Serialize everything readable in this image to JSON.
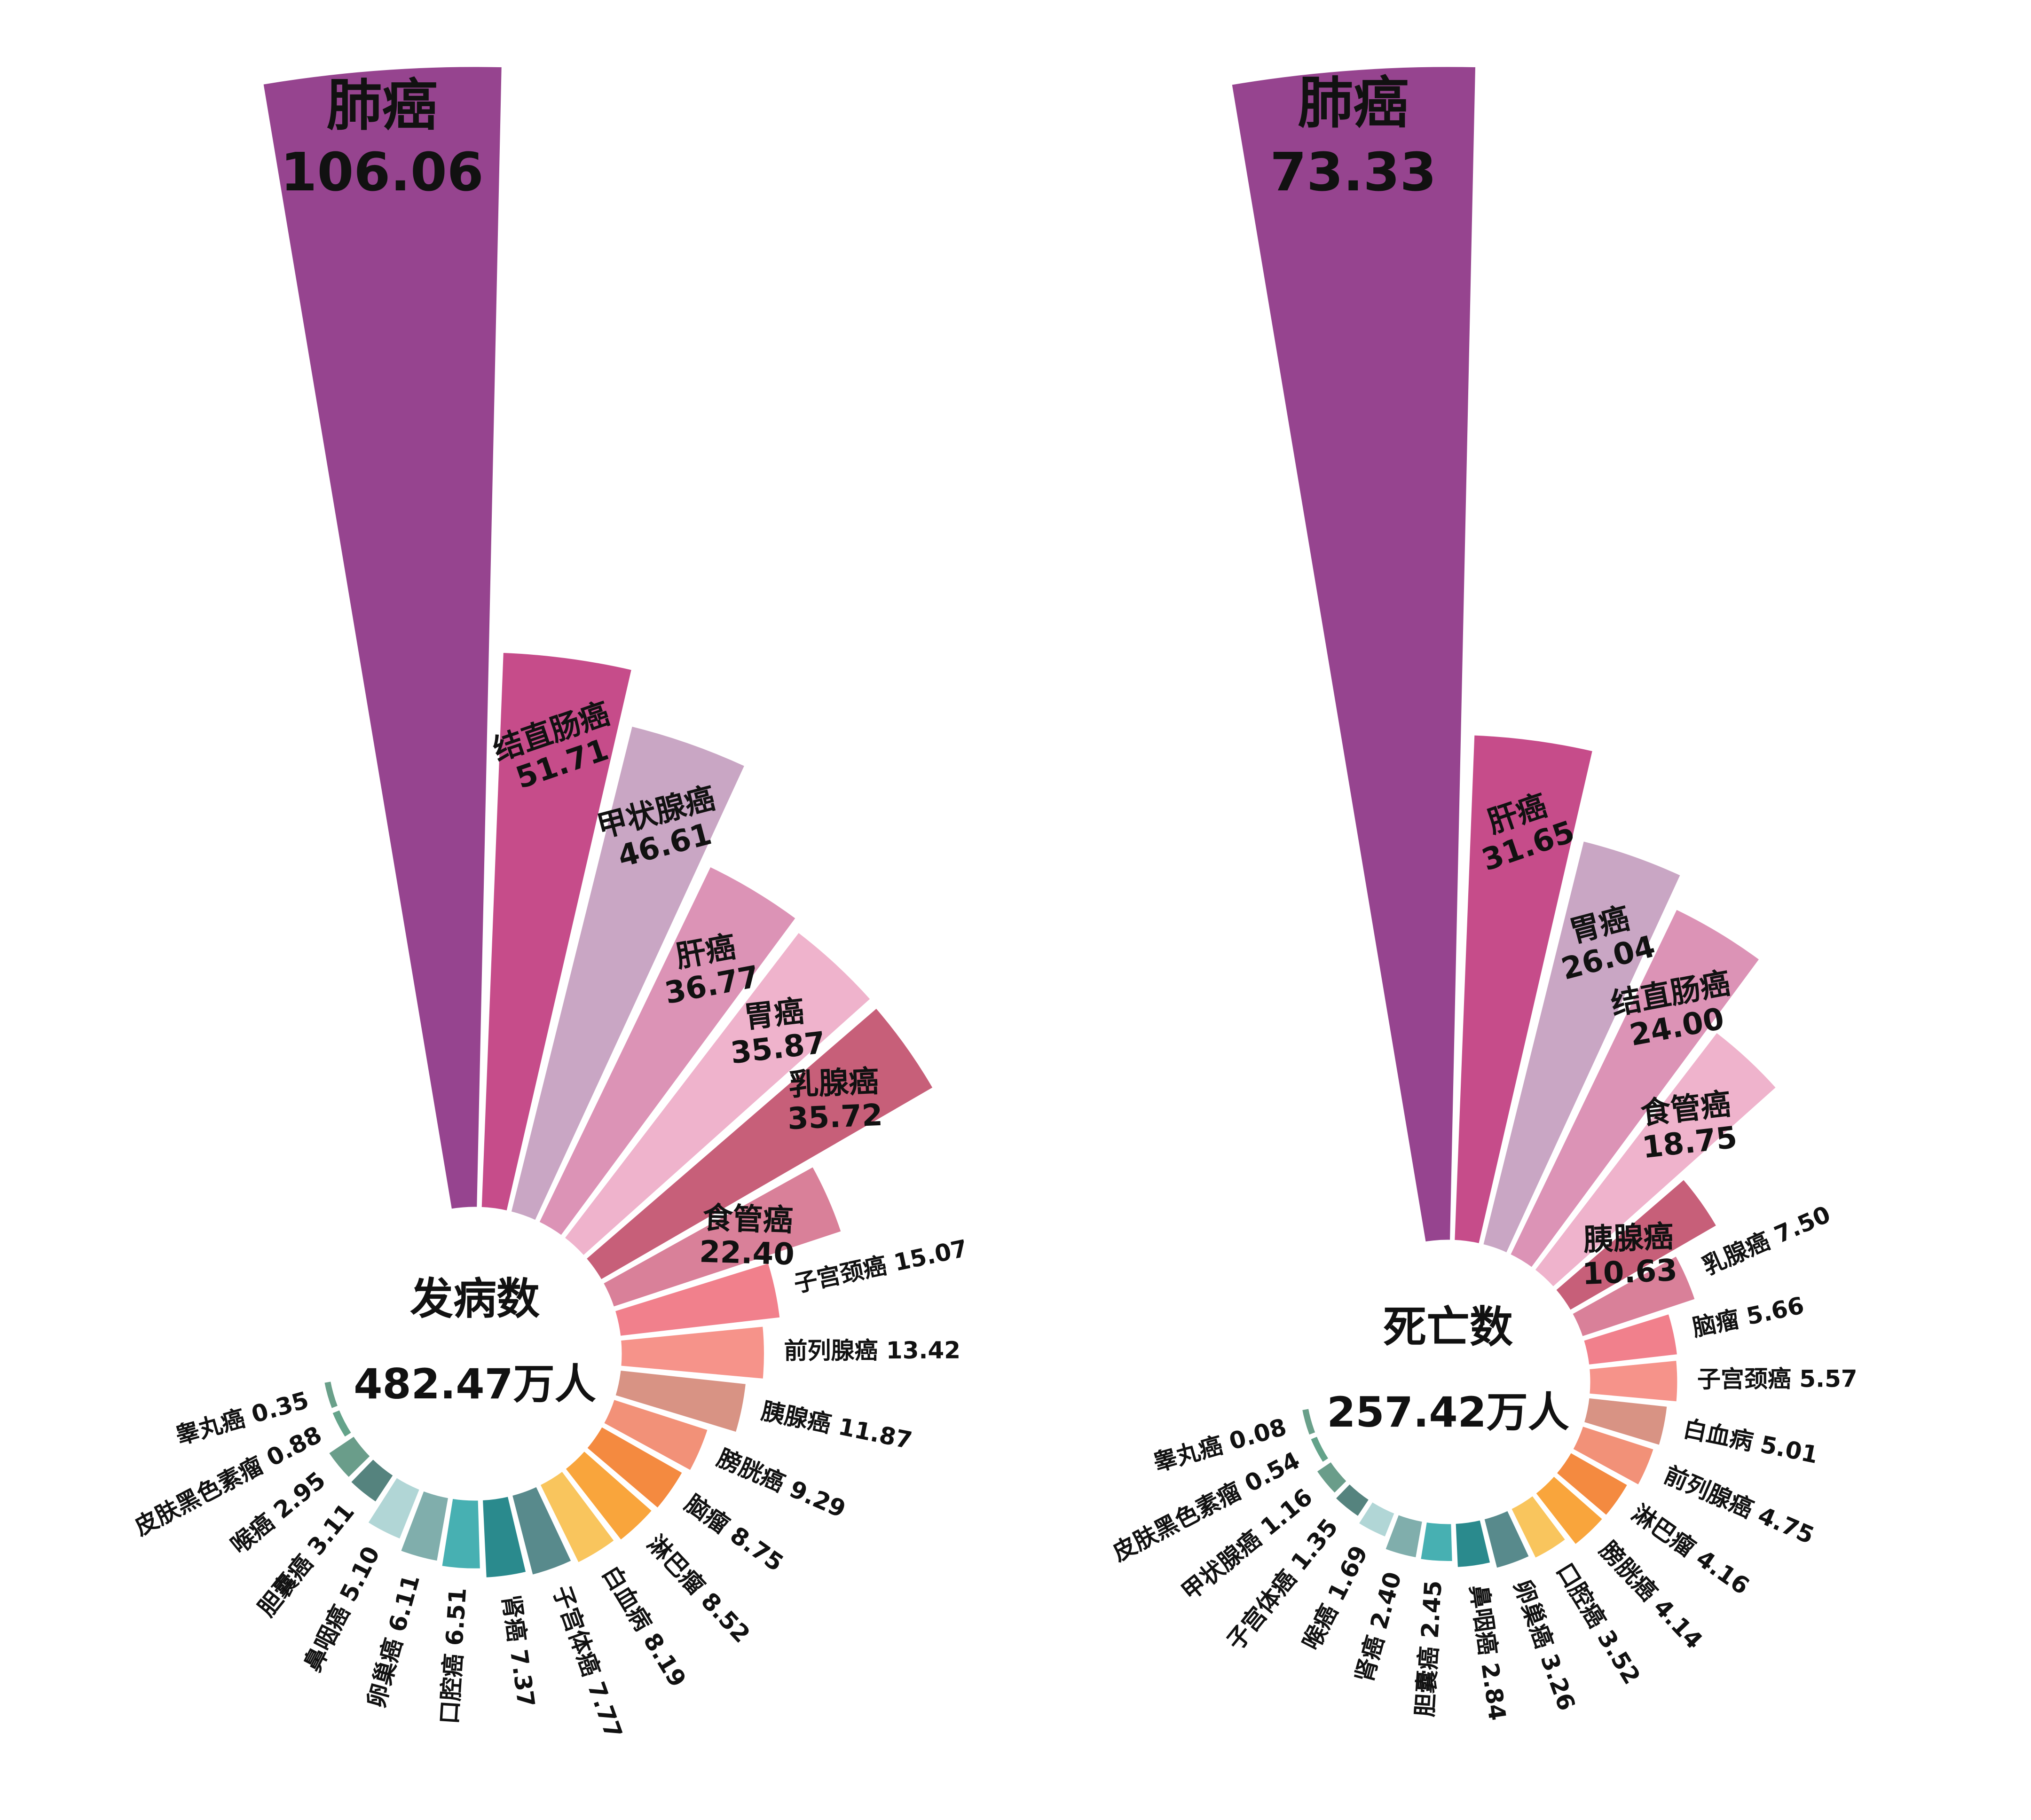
{
  "chart_data": [
    {
      "type": "nightingale-rose",
      "center_title": "发病数",
      "center_total": "482.47万人",
      "categories": [
        "肺癌",
        "结直肠癌",
        "甲状腺癌",
        "肝癌",
        "胃癌",
        "乳腺癌",
        "食管癌",
        "子宫颈癌",
        "前列腺癌",
        "胰腺癌",
        "膀胱癌",
        "脑瘤",
        "淋巴瘤",
        "白血病",
        "子宫体癌",
        "肾癌",
        "口腔癌",
        "卵巢癌",
        "鼻咽癌",
        "胆囊癌",
        "喉癌",
        "皮肤黑色素瘤",
        "睾丸癌"
      ],
      "values": [
        106.06,
        51.71,
        46.61,
        36.77,
        35.87,
        35.72,
        22.4,
        15.07,
        13.42,
        11.87,
        9.29,
        8.75,
        8.52,
        8.19,
        7.77,
        7.37,
        6.51,
        6.11,
        5.1,
        3.11,
        2.95,
        0.88,
        0.35
      ],
      "value_labels": [
        "106.06",
        "51.71",
        "46.61",
        "36.77",
        "35.87",
        "35.72",
        "22.40",
        "15.07",
        "13.42",
        "11.87",
        "9.29",
        "8.75",
        "8.52",
        "8.19",
        "7.77",
        "7.37",
        "6.51",
        "6.11",
        "5.10",
        "3.11",
        "2.95",
        "0.88",
        "0.35"
      ],
      "colors": [
        "#96448f",
        "#c64c8a",
        "#c9a6c4",
        "#dc93b6",
        "#efb3cc",
        "#c75f79",
        "#d98099",
        "#f1808c",
        "#f6938a",
        "#d89384",
        "#f29178",
        "#f48a40",
        "#f9a53c",
        "#f9c55d",
        "#588a8c",
        "#2a8a8d",
        "#47b0b2",
        "#80aeac",
        "#b1d6d6",
        "#55837e",
        "#6a9d8a",
        "#64a38a",
        "#6aa08a"
      ]
    },
    {
      "type": "nightingale-rose",
      "center_title": "死亡数",
      "center_total": "257.42万人",
      "categories": [
        "肺癌",
        "肝癌",
        "胃癌",
        "结直肠癌",
        "食管癌",
        "胰腺癌",
        "乳腺癌",
        "脑瘤",
        "子宫颈癌",
        "白血病",
        "前列腺癌",
        "淋巴瘤",
        "膀胱癌",
        "口腔癌",
        "卵巢癌",
        "鼻咽癌",
        "胆囊癌",
        "肾癌",
        "喉癌",
        "子宫体癌",
        "甲状腺癌",
        "皮肤黑色素瘤",
        "睾丸癌"
      ],
      "values": [
        73.33,
        31.65,
        26.04,
        24.0,
        18.75,
        10.63,
        7.5,
        5.66,
        5.57,
        5.01,
        4.75,
        4.16,
        4.14,
        3.52,
        3.26,
        2.84,
        2.45,
        2.4,
        1.69,
        1.35,
        1.16,
        0.54,
        0.08
      ],
      "value_labels": [
        "73.33",
        "31.65",
        "26.04",
        "24.00",
        "18.75",
        "10.63",
        "7.50",
        "5.66",
        "5.57",
        "5.01",
        "4.75",
        "4.16",
        "4.14",
        "3.52",
        "3.26",
        "2.84",
        "2.45",
        "2.40",
        "1.69",
        "1.35",
        "1.16",
        "0.54",
        "0.08"
      ],
      "colors": [
        "#96448f",
        "#c64c8a",
        "#c9a6c4",
        "#dc93b6",
        "#efb3cc",
        "#c75f79",
        "#d98099",
        "#f1808c",
        "#f6938a",
        "#d89384",
        "#f29178",
        "#f48a40",
        "#f9a53c",
        "#f9c55d",
        "#588a8c",
        "#2a8a8d",
        "#47b0b2",
        "#80aeac",
        "#b1d6d6",
        "#55837e",
        "#6a9d8a",
        "#64a38a",
        "#6aa08a"
      ]
    }
  ]
}
